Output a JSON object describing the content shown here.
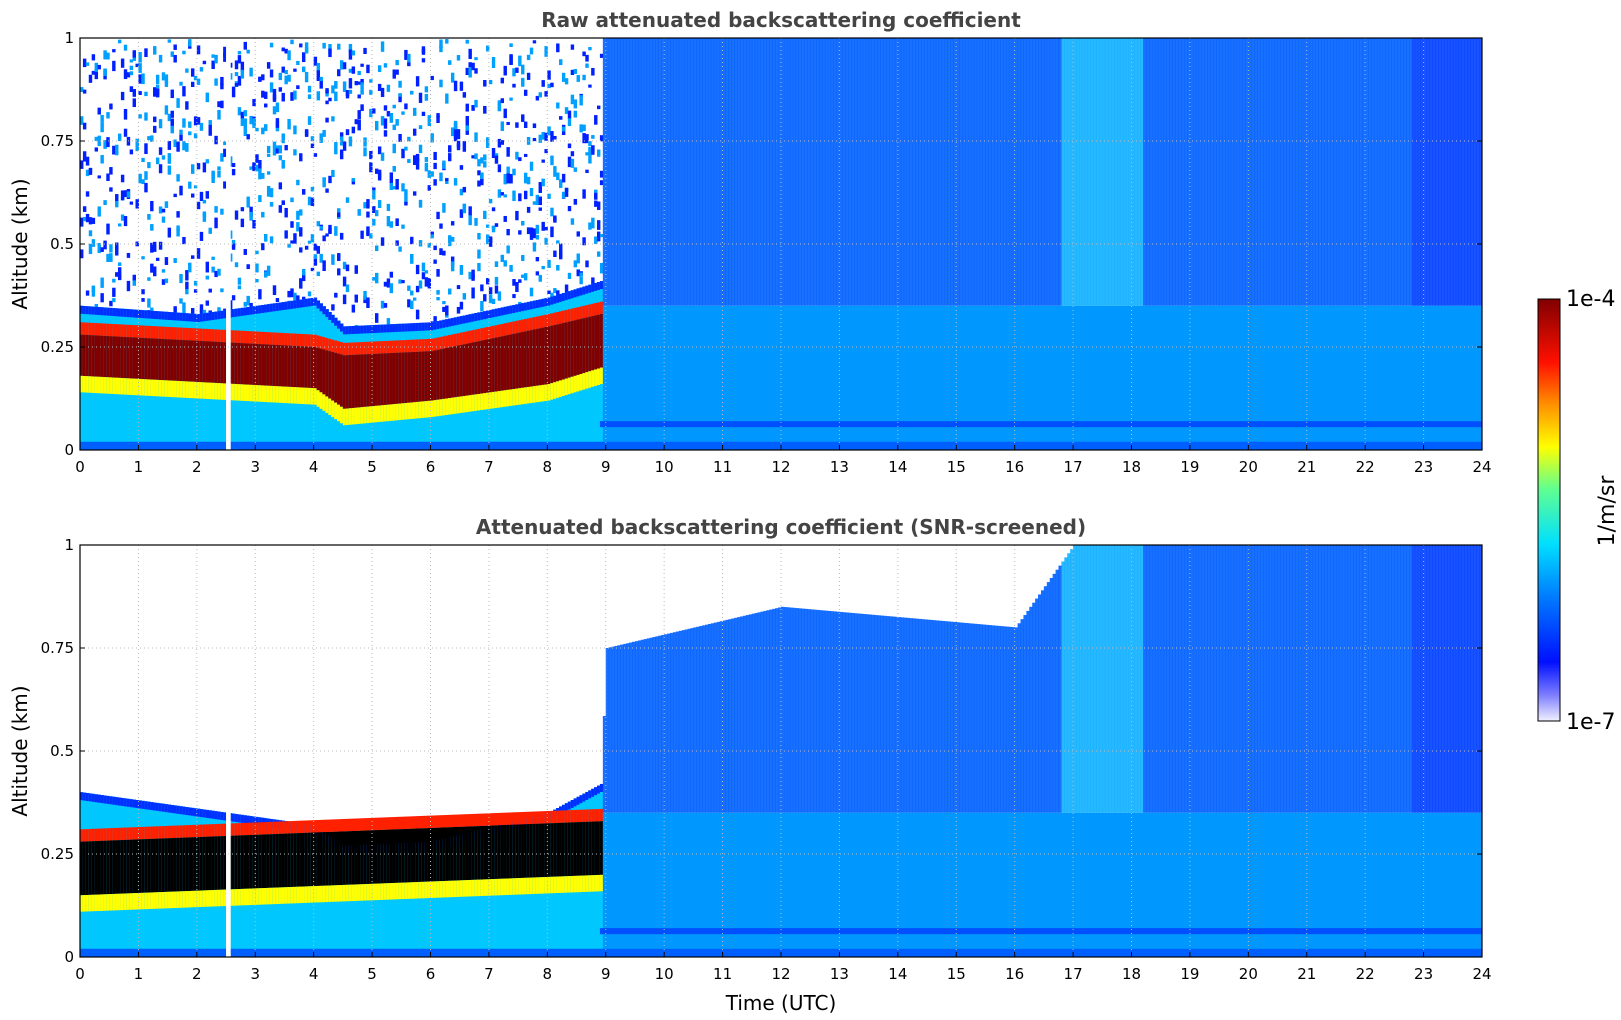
{
  "chart_data": [
    {
      "type": "heatmap",
      "title": "Raw attenuated backscattering coefficient",
      "ylabel": "Altitude (km)",
      "xlabel": "",
      "xlim": [
        0,
        24
      ],
      "ylim": [
        0,
        1
      ],
      "xticks": [
        "0",
        "1",
        "2",
        "3",
        "4",
        "5",
        "6",
        "7",
        "8",
        "9",
        "10",
        "11",
        "12",
        "13",
        "14",
        "15",
        "16",
        "17",
        "18",
        "19",
        "20",
        "21",
        "22",
        "23",
        "24"
      ],
      "yticks": [
        "0",
        "0.25",
        "0.5",
        "0.75",
        "1"
      ],
      "grid": true,
      "features": {
        "aerosol_layer_top_km": {
          "x": [
            0,
            2,
            4,
            4.5,
            6,
            8,
            8.9
          ],
          "y": [
            0.3,
            0.28,
            0.32,
            0.25,
            0.26,
            0.32,
            0.36
          ]
        },
        "dense_layer": {
          "x": [
            0,
            4,
            4.5,
            6,
            8,
            8.9
          ],
          "top": [
            0.28,
            0.25,
            0.23,
            0.24,
            0.3,
            0.33
          ],
          "bottom": [
            0.18,
            0.15,
            0.1,
            0.12,
            0.16,
            0.2
          ]
        },
        "data_gap_hours": [
          2.5,
          2.58
        ]
      }
    },
    {
      "type": "heatmap",
      "title": "Attenuated backscattering coefficient (SNR-screened)",
      "ylabel": "Altitude (km)",
      "xlabel": "Time (UTC)",
      "xlim": [
        0,
        24
      ],
      "ylim": [
        0,
        1
      ],
      "xticks": [
        "0",
        "1",
        "2",
        "3",
        "4",
        "5",
        "6",
        "7",
        "8",
        "9",
        "10",
        "11",
        "12",
        "13",
        "14",
        "15",
        "16",
        "17",
        "18",
        "19",
        "20",
        "21",
        "22",
        "23",
        "24"
      ],
      "yticks": [
        "0",
        "0.25",
        "0.5",
        "0.75",
        "1"
      ],
      "grid": true,
      "features": {
        "screened_top_km": {
          "x": [
            0,
            4,
            4.5,
            6,
            8,
            8.9,
            9,
            12,
            16,
            17,
            24
          ],
          "y": [
            0.4,
            0.32,
            0.27,
            0.28,
            0.35,
            0.42,
            0.75,
            0.85,
            0.8,
            1,
            1
          ]
        },
        "data_gap_hours": [
          2.5,
          2.58
        ]
      }
    }
  ],
  "colorbar": {
    "max_label": "1e-4",
    "min_label": "1e-7",
    "unit_label": "1/m/sr",
    "scale": "log"
  },
  "colors": {
    "dense": "#800000",
    "red": "#ff2000",
    "yellow": "#ffff00",
    "cyan": "#00e0ff",
    "light_blue": "#0090ff",
    "blue": "#0030ff",
    "pale": "#e8e8ff",
    "saturated": "#000000",
    "title_text": "#444444"
  }
}
